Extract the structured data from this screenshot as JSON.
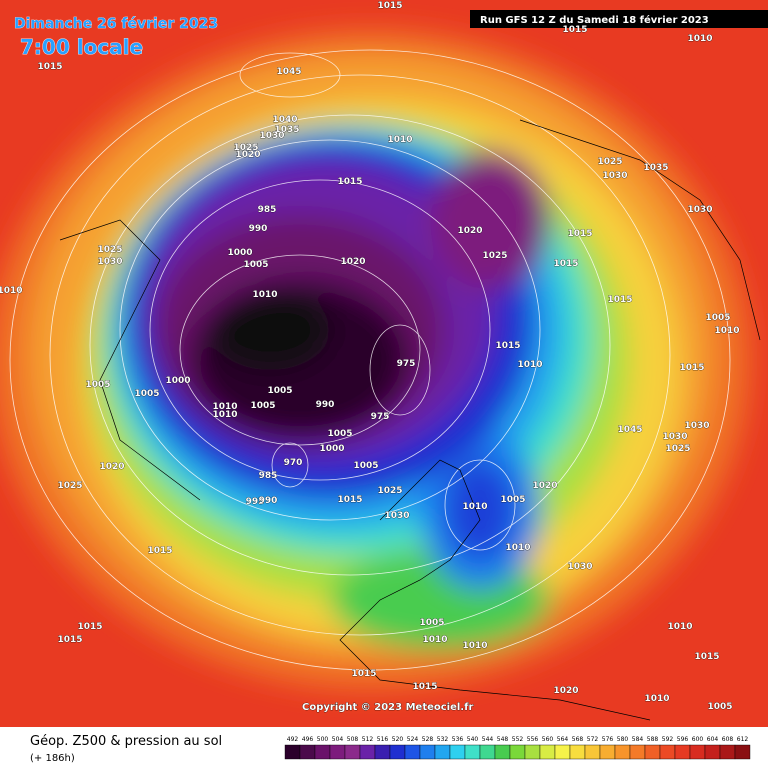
{
  "header": {
    "title": "Dimanche 26 février 2023",
    "time": "7:00 locale",
    "run": "Run GFS 12 Z du Samedi 18 février 2023"
  },
  "footer": {
    "title": "Géop. Z500 & pression au sol",
    "lead": "(+ 186h)",
    "copyright": "Copyright © 2023 Meteociel.fr"
  },
  "isobar_labels": [
    1015,
    1045,
    1040,
    1035,
    1030,
    1025,
    1020,
    1010,
    1015,
    985,
    990,
    1000,
    1005,
    1020,
    1020,
    1025,
    1010,
    1025,
    1030,
    1010,
    1005,
    1005,
    1000,
    1010,
    1010,
    1005,
    1005,
    975,
    990,
    975,
    1005,
    1000,
    1005,
    970,
    985,
    995,
    990,
    1015,
    1025,
    1030,
    1020,
    1025,
    1015,
    1010,
    1005,
    1010,
    1020,
    1030,
    1015,
    1015,
    1005,
    1010,
    1010,
    1015,
    1015,
    1020,
    1010,
    1015,
    1010,
    1005,
    1015,
    1010,
    1015,
    1015,
    1015,
    1025,
    1030,
    1035,
    1030,
    1005,
    1010,
    1015,
    1045,
    1030,
    1025,
    1030,
    1015,
    1015,
    1010
  ],
  "legend": {
    "values": [
      492,
      496,
      500,
      504,
      508,
      512,
      516,
      520,
      524,
      528,
      532,
      536,
      540,
      544,
      548,
      552,
      556,
      560,
      564,
      568,
      572,
      576,
      580,
      584,
      588,
      592,
      596,
      600,
      604,
      608,
      612
    ],
    "colors": [
      "#2b002b",
      "#4b0a4b",
      "#6a126a",
      "#7d1c7d",
      "#8b2a8b",
      "#6a22a8",
      "#3a1fb0",
      "#1f2fd0",
      "#1e55e6",
      "#1f7fee",
      "#22a6f0",
      "#2ed0ef",
      "#3fe0c8",
      "#3fd890",
      "#48cc50",
      "#7ad83a",
      "#a8e040",
      "#d8ec44",
      "#f6f24a",
      "#f8dd3e",
      "#f8c637",
      "#f8ad30",
      "#f7942b",
      "#f47a28",
      "#f06026",
      "#ec4a24",
      "#e63a22",
      "#d82c20",
      "#c4201c",
      "#aa1818",
      "#8a0f12"
    ]
  }
}
